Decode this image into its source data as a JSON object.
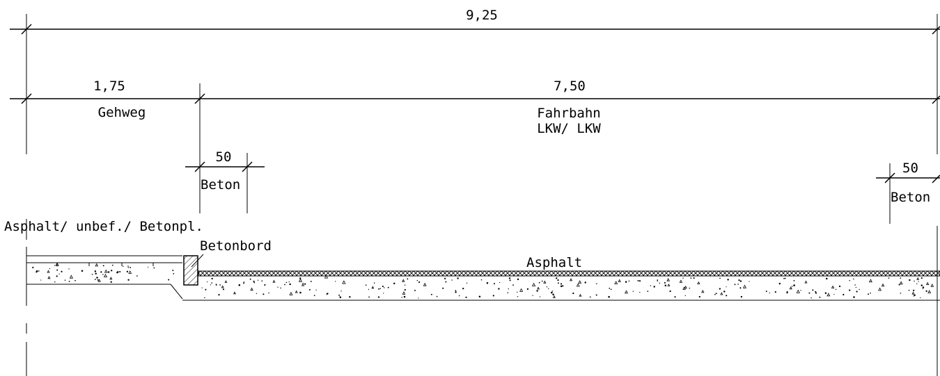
{
  "dimensions": {
    "total": "9,25",
    "sidewalk": "1,75",
    "roadway": "7,50",
    "curb_left": "50",
    "curb_right": "50"
  },
  "labels": {
    "gehweg": "Gehweg",
    "fahrbahn": "Fahrbahn",
    "fahrbahn_class": "LKW/ LKW",
    "beton_left": "Beton",
    "beton_right": "Beton",
    "sidewalk_surface": "Asphalt/ unbef./ Betonpl.",
    "curb": "Betonbord",
    "road_surface": "Asphalt"
  },
  "colors": {
    "line": "#000000",
    "background": "#ffffff"
  }
}
